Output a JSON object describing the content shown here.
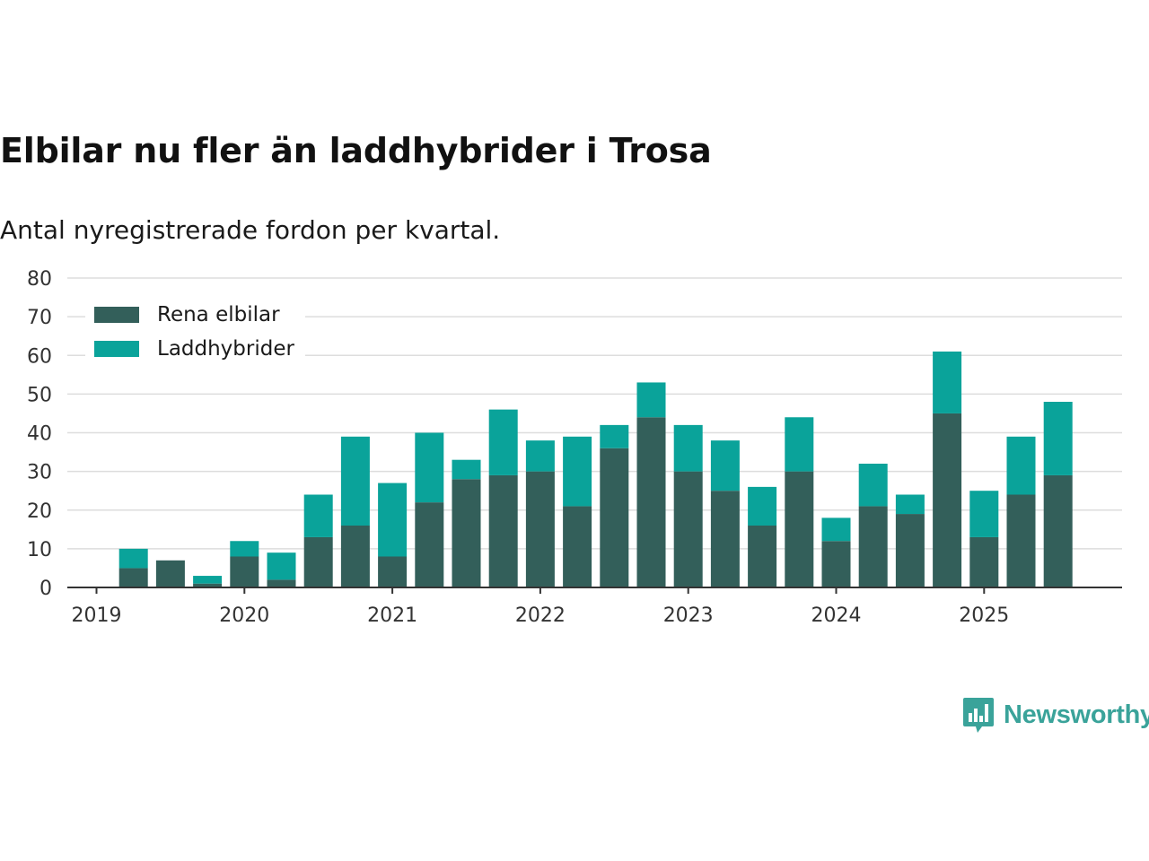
{
  "header": {
    "title": "Elbilar nu fler än laddhybrider i Trosa",
    "subtitle": "Antal nyregistrerade fordon per kvartal."
  },
  "logo": {
    "text": "Newsworthy",
    "icon": "bar-chart-speech-bubble-icon"
  },
  "colors": {
    "rena_elbilar": "#335f5a",
    "laddhybrider": "#0aa39a",
    "grid": "#dddddd",
    "axis": "#333333"
  },
  "legend": {
    "items": [
      {
        "label": "Rena elbilar",
        "color": "#335f5a"
      },
      {
        "label": "Laddhybrider",
        "color": "#0aa39a"
      }
    ]
  },
  "chart_data": {
    "type": "bar",
    "stacked": true,
    "title": "Elbilar nu fler än laddhybrider i Trosa",
    "subtitle": "Antal nyregistrerade fordon per kvartal.",
    "xlabel": "",
    "ylabel": "",
    "ylim": [
      0,
      80
    ],
    "yticks": [
      0,
      10,
      20,
      30,
      40,
      50,
      60,
      70,
      80
    ],
    "xticks": [
      "2019",
      "2020",
      "2021",
      "2022",
      "2023",
      "2024",
      "2025"
    ],
    "grid": true,
    "legend_position": "top-left",
    "categories": [
      "2019 Q1",
      "2019 Q2",
      "2019 Q3",
      "2019 Q4",
      "2020 Q1",
      "2020 Q2",
      "2020 Q3",
      "2020 Q4",
      "2021 Q1",
      "2021 Q2",
      "2021 Q3",
      "2021 Q4",
      "2022 Q1",
      "2022 Q2",
      "2022 Q3",
      "2022 Q4",
      "2023 Q1",
      "2023 Q2",
      "2023 Q3",
      "2023 Q4",
      "2024 Q1",
      "2024 Q2",
      "2024 Q3",
      "2024 Q4",
      "2025 Q1",
      "2025 Q2",
      "2025 Q3"
    ],
    "series": [
      {
        "name": "Rena elbilar",
        "values": [
          0,
          5,
          7,
          1,
          8,
          2,
          13,
          16,
          8,
          22,
          28,
          29,
          30,
          21,
          36,
          44,
          30,
          25,
          16,
          30,
          12,
          21,
          19,
          45,
          13,
          24,
          29
        ]
      },
      {
        "name": "Laddhybrider",
        "values": [
          0,
          5,
          0,
          2,
          4,
          7,
          11,
          23,
          19,
          18,
          5,
          17,
          8,
          18,
          6,
          9,
          12,
          13,
          10,
          14,
          6,
          11,
          5,
          16,
          12,
          15,
          19
        ]
      }
    ]
  }
}
